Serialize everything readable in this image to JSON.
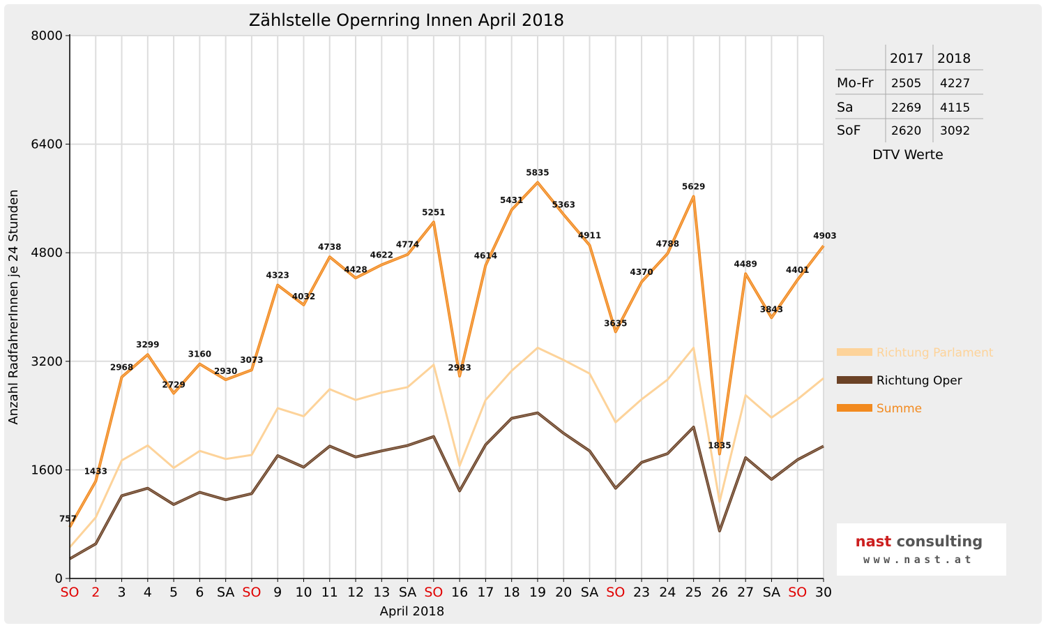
{
  "chart_data": {
    "type": "line",
    "title": "Zählstelle Opernring Innen April 2018",
    "xlabel": "April 2018",
    "ylabel": "Anzahl RadfahrerInnen je 24 Stunden",
    "ylim": [
      0,
      8000
    ],
    "yticks": [
      "0",
      "1600",
      "3200",
      "4800",
      "6400",
      "8000"
    ],
    "grid": true,
    "legend_position": "right",
    "categories": [
      "SO",
      "2",
      "3",
      "4",
      "5",
      "6",
      "SA",
      "SO",
      "9",
      "10",
      "11",
      "12",
      "13",
      "SA",
      "SO",
      "16",
      "17",
      "18",
      "19",
      "20",
      "SA",
      "SO",
      "23",
      "24",
      "25",
      "26",
      "27",
      "SA",
      "SO",
      "30"
    ],
    "highlight_categories": [
      0,
      1,
      7,
      14,
      21,
      28
    ],
    "highlight_color": "#e00000",
    "series": [
      {
        "name": "Richtung Parlament",
        "color": "#fdd39a",
        "values": [
          460,
          900,
          1740,
          1960,
          1630,
          1880,
          1760,
          1820,
          2510,
          2390,
          2790,
          2630,
          2740,
          2820,
          3150,
          1660,
          2630,
          3060,
          3400,
          3220,
          3020,
          2300,
          2640,
          2930,
          3400,
          1130,
          2700,
          2370,
          2640,
          2950
        ]
      },
      {
        "name": "Richtung Oper",
        "color": "#6b4226",
        "values": [
          290,
          510,
          1220,
          1330,
          1090,
          1270,
          1160,
          1250,
          1810,
          1640,
          1950,
          1790,
          1880,
          1960,
          2090,
          1290,
          1970,
          2360,
          2440,
          2140,
          1880,
          1330,
          1710,
          1840,
          2230,
          700,
          1780,
          1460,
          1750,
          1950
        ]
      },
      {
        "name": "Summe",
        "color": "#f28a1f",
        "values": [
          757,
          1433,
          2968,
          3299,
          2729,
          3160,
          2930,
          3073,
          4323,
          4032,
          4738,
          4428,
          4622,
          4774,
          5251,
          2983,
          4614,
          5431,
          5835,
          5363,
          4911,
          3635,
          4370,
          4788,
          5629,
          1835,
          4489,
          3843,
          4401,
          4903
        ],
        "labels": [
          "757",
          "1433",
          "2968",
          "3299",
          "2729",
          "3160",
          "2930",
          "3073",
          "4323",
          "4032",
          "4738",
          "4428",
          "4622",
          "4774",
          "5251",
          "2983",
          "4614",
          "5431",
          "5835",
          "5363",
          "4911",
          "3635",
          "4370",
          "4788",
          "5629",
          "1835",
          "4489",
          "3843",
          "4401",
          "4903"
        ]
      }
    ]
  },
  "dtv_table": {
    "headers": [
      "",
      "2017",
      "2018"
    ],
    "rows": [
      [
        "Mo-Fr",
        "2505",
        "4227"
      ],
      [
        "Sa",
        "2269",
        "4115"
      ],
      [
        "SoF",
        "2620",
        "3092"
      ]
    ],
    "caption": "DTV Werte"
  },
  "logo": {
    "name": "nast consulting",
    "url_text": "www.nast.at"
  }
}
